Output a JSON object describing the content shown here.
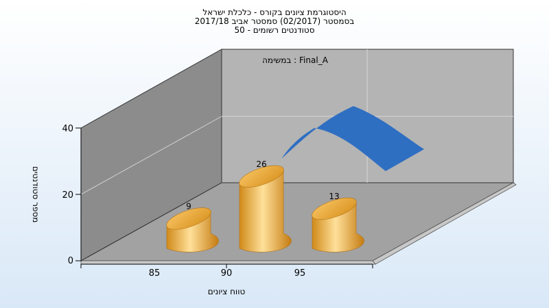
{
  "chart_data": {
    "type": "bar",
    "title_lines": [
      "היסטוגרמת ציונים בקורס - כלכלת ישראל",
      "בסמסטר  (02/2017)  סמסטר אביב 2017/18",
      "סטודנטים רשומים - 50"
    ],
    "legend_label": "במשימה : Final_A",
    "xlabel": "טווח ציונים",
    "ylabel": "מספר סטודנטים",
    "x_ticks": [
      85,
      90,
      95
    ],
    "y_ticks": [
      0,
      20,
      40
    ],
    "ylim": [
      0,
      40
    ],
    "categories": [
      "85",
      "90",
      "95"
    ],
    "values": [
      9,
      26,
      13
    ],
    "data_labels": [
      "9",
      "26",
      "13"
    ],
    "bar_color": "#f0b040",
    "curve_color": "#2f6fc2"
  }
}
